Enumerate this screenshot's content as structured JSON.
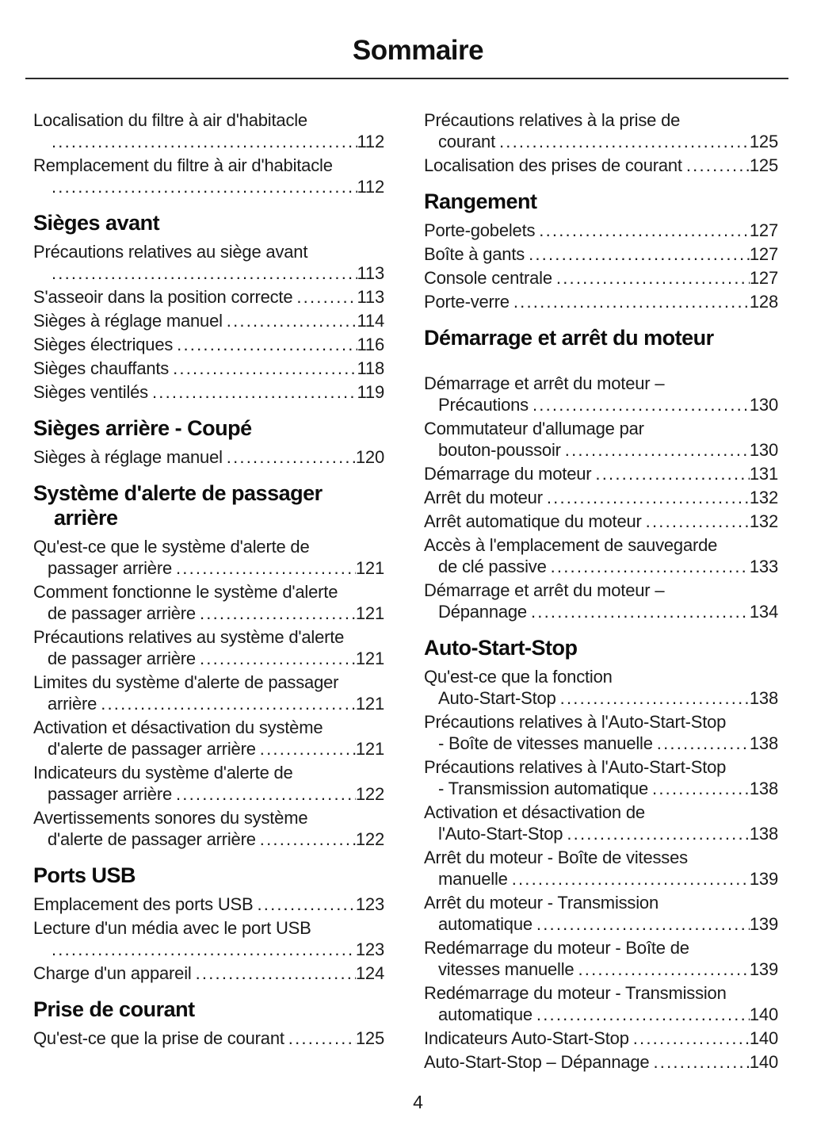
{
  "page": {
    "title": "Sommaire",
    "page_number": "4"
  },
  "columns": {
    "left": [
      {
        "type": "entry",
        "lines": [
          "Localisation du filtre à air d'habitacle",
          ""
        ],
        "page": "112"
      },
      {
        "type": "entry",
        "lines": [
          "Remplacement du filtre à air d'habitacle",
          ""
        ],
        "page": "112"
      },
      {
        "type": "heading",
        "lines": [
          "Sièges avant"
        ]
      },
      {
        "type": "entry",
        "lines": [
          "Précautions relatives au siège avant",
          ""
        ],
        "page": "113"
      },
      {
        "type": "entry",
        "lines": [
          "S'asseoir dans la position correcte"
        ],
        "page": "113"
      },
      {
        "type": "entry",
        "lines": [
          "Sièges à réglage manuel"
        ],
        "page": "114"
      },
      {
        "type": "entry",
        "lines": [
          "Sièges électriques"
        ],
        "page": "116"
      },
      {
        "type": "entry",
        "lines": [
          "Sièges chauffants"
        ],
        "page": "118"
      },
      {
        "type": "entry",
        "lines": [
          "Sièges ventilés"
        ],
        "page": "119"
      },
      {
        "type": "heading",
        "lines": [
          "Sièges arrière - Coupé"
        ]
      },
      {
        "type": "entry",
        "lines": [
          "Sièges à réglage manuel"
        ],
        "page": "120"
      },
      {
        "type": "heading",
        "lines": [
          "Système d'alerte de passager",
          "arrière"
        ]
      },
      {
        "type": "entry",
        "lines": [
          "Qu'est-ce que le système d'alerte de",
          "passager arrière"
        ],
        "page": "121"
      },
      {
        "type": "entry",
        "lines": [
          "Comment fonctionne le système d'alerte",
          "de passager arrière"
        ],
        "page": "121"
      },
      {
        "type": "entry",
        "lines": [
          "Précautions relatives au système d'alerte",
          "de passager arrière"
        ],
        "page": "121"
      },
      {
        "type": "entry",
        "lines": [
          "Limites du système d'alerte de passager",
          "arrière"
        ],
        "page": "121"
      },
      {
        "type": "entry",
        "lines": [
          "Activation et désactivation du système",
          "d'alerte de passager arrière"
        ],
        "page": "121"
      },
      {
        "type": "entry",
        "lines": [
          "Indicateurs du système d'alerte de",
          "passager arrière"
        ],
        "page": "122"
      },
      {
        "type": "entry",
        "lines": [
          "Avertissements sonores du système",
          "d'alerte de passager arrière"
        ],
        "page": "122"
      },
      {
        "type": "heading",
        "lines": [
          "Ports USB"
        ]
      },
      {
        "type": "entry",
        "lines": [
          "Emplacement des ports USB"
        ],
        "page": "123"
      },
      {
        "type": "entry",
        "lines": [
          "Lecture d'un média avec le port USB",
          ""
        ],
        "page": "123"
      },
      {
        "type": "entry",
        "lines": [
          "Charge d'un appareil"
        ],
        "page": "124"
      },
      {
        "type": "heading",
        "lines": [
          "Prise de courant"
        ]
      },
      {
        "type": "entry",
        "lines": [
          "Qu'est-ce que la prise de courant"
        ],
        "page": "125"
      }
    ],
    "right": [
      {
        "type": "entry",
        "lines": [
          "Précautions relatives à la prise de",
          "courant"
        ],
        "page": "125"
      },
      {
        "type": "entry",
        "lines": [
          "Localisation des prises de courant"
        ],
        "page": "125"
      },
      {
        "type": "heading",
        "lines": [
          "Rangement"
        ]
      },
      {
        "type": "entry",
        "lines": [
          "Porte-gobelets"
        ],
        "page": "127"
      },
      {
        "type": "entry",
        "lines": [
          "Boîte à gants"
        ],
        "page": "127"
      },
      {
        "type": "entry",
        "lines": [
          "Console centrale"
        ],
        "page": "127"
      },
      {
        "type": "entry",
        "lines": [
          "Porte-verre"
        ],
        "page": "128"
      },
      {
        "type": "heading",
        "lines": [
          "Démarrage et arrêt du moteur"
        ],
        "gap_after": true
      },
      {
        "type": "entry",
        "lines": [
          "Démarrage et arrêt du moteur –",
          "Précautions"
        ],
        "page": "130"
      },
      {
        "type": "entry",
        "lines": [
          "Commutateur d'allumage par",
          "bouton-poussoir"
        ],
        "page": "130"
      },
      {
        "type": "entry",
        "lines": [
          "Démarrage du moteur"
        ],
        "page": "131"
      },
      {
        "type": "entry",
        "lines": [
          "Arrêt du moteur"
        ],
        "page": "132"
      },
      {
        "type": "entry",
        "lines": [
          "Arrêt automatique du moteur"
        ],
        "page": "132"
      },
      {
        "type": "entry",
        "lines": [
          "Accès à l'emplacement de sauvegarde",
          "de clé passive"
        ],
        "page": "133"
      },
      {
        "type": "entry",
        "lines": [
          "Démarrage et arrêt du moteur –",
          "Dépannage"
        ],
        "page": "134"
      },
      {
        "type": "heading",
        "lines": [
          "Auto-Start-Stop"
        ]
      },
      {
        "type": "entry",
        "lines": [
          "Qu'est-ce que la fonction",
          "Auto-Start-Stop"
        ],
        "page": "138"
      },
      {
        "type": "entry",
        "lines": [
          "Précautions relatives à l'Auto-Start-Stop",
          "- Boîte de vitesses manuelle"
        ],
        "page": "138"
      },
      {
        "type": "entry",
        "lines": [
          "Précautions relatives à l'Auto-Start-Stop",
          "- Transmission automatique"
        ],
        "page": "138"
      },
      {
        "type": "entry",
        "lines": [
          "Activation et désactivation de",
          "l'Auto-Start-Stop"
        ],
        "page": "138"
      },
      {
        "type": "entry",
        "lines": [
          "Arrêt du moteur - Boîte de vitesses",
          "manuelle"
        ],
        "page": "139"
      },
      {
        "type": "entry",
        "lines": [
          "Arrêt du moteur - Transmission",
          "automatique"
        ],
        "page": "139"
      },
      {
        "type": "entry",
        "lines": [
          "Redémarrage du moteur - Boîte de",
          "vitesses manuelle"
        ],
        "page": "139"
      },
      {
        "type": "entry",
        "lines": [
          "Redémarrage du moteur - Transmission",
          "automatique"
        ],
        "page": "140"
      },
      {
        "type": "entry",
        "lines": [
          "Indicateurs Auto-Start-Stop"
        ],
        "page": "140"
      },
      {
        "type": "entry",
        "lines": [
          "Auto-Start-Stop – Dépannage"
        ],
        "page": "140"
      }
    ]
  }
}
